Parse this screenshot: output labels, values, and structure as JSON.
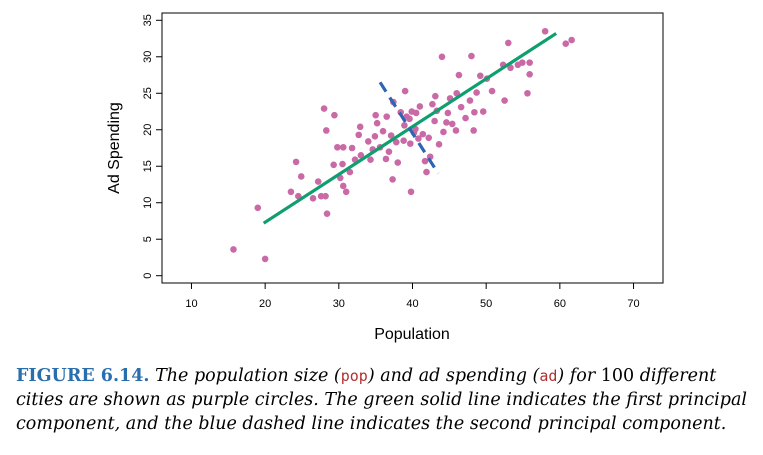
{
  "chart_data": {
    "type": "scatter",
    "xlabel": "Population",
    "ylabel": "Ad Spending",
    "xlim": [
      6,
      74
    ],
    "ylim": [
      -1,
      36
    ],
    "xticks": [
      10,
      20,
      30,
      40,
      50,
      60,
      70
    ],
    "yticks": [
      0,
      5,
      10,
      15,
      20,
      25,
      30,
      35
    ],
    "grid": false,
    "points": [
      [
        15.7,
        3.6
      ],
      [
        19.0,
        9.3
      ],
      [
        20.0,
        2.3
      ],
      [
        23.5,
        11.5
      ],
      [
        24.2,
        15.6
      ],
      [
        24.9,
        13.6
      ],
      [
        24.5,
        10.9
      ],
      [
        26.5,
        10.6
      ],
      [
        27.2,
        12.9
      ],
      [
        27.6,
        10.9
      ],
      [
        28.2,
        10.9
      ],
      [
        28.4,
        8.5
      ],
      [
        28.0,
        22.9
      ],
      [
        28.3,
        19.9
      ],
      [
        29.3,
        15.2
      ],
      [
        29.4,
        22.0
      ],
      [
        29.8,
        17.6
      ],
      [
        30.2,
        13.4
      ],
      [
        30.6,
        17.6
      ],
      [
        30.6,
        12.3
      ],
      [
        31.0,
        11.5
      ],
      [
        30.5,
        15.3
      ],
      [
        31.8,
        17.5
      ],
      [
        32.2,
        15.9
      ],
      [
        32.7,
        19.3
      ],
      [
        32.9,
        20.4
      ],
      [
        33.0,
        16.5
      ],
      [
        34.0,
        18.4
      ],
      [
        34.3,
        15.9
      ],
      [
        34.6,
        17.3
      ],
      [
        35.2,
        20.9
      ],
      [
        35.6,
        17.6
      ],
      [
        35.0,
        22.0
      ],
      [
        36.0,
        19.8
      ],
      [
        36.4,
        16.0
      ],
      [
        36.5,
        21.8
      ],
      [
        37.1,
        19.2
      ],
      [
        37.3,
        13.2
      ],
      [
        37.8,
        18.3
      ],
      [
        38.0,
        15.5
      ],
      [
        38.4,
        22.4
      ],
      [
        38.8,
        18.5
      ],
      [
        39.0,
        25.3
      ],
      [
        39.2,
        21.8
      ],
      [
        39.6,
        21.5
      ],
      [
        39.7,
        18.1
      ],
      [
        39.9,
        22.5
      ],
      [
        39.8,
        11.5
      ],
      [
        40.2,
        19.6
      ],
      [
        40.5,
        22.3
      ],
      [
        40.8,
        18.8
      ],
      [
        41.0,
        23.2
      ],
      [
        41.4,
        19.4
      ],
      [
        41.7,
        15.7
      ],
      [
        41.9,
        14.2
      ],
      [
        42.2,
        18.9
      ],
      [
        42.4,
        16.3
      ],
      [
        42.7,
        23.5
      ],
      [
        43.1,
        24.6
      ],
      [
        43.3,
        22.6
      ],
      [
        43.6,
        18.0
      ],
      [
        44.0,
        30.0
      ],
      [
        44.2,
        19.7
      ],
      [
        44.6,
        21.0
      ],
      [
        44.8,
        22.3
      ],
      [
        45.1,
        24.3
      ],
      [
        45.4,
        20.8
      ],
      [
        45.9,
        19.9
      ],
      [
        46.3,
        27.5
      ],
      [
        46.6,
        23.1
      ],
      [
        47.2,
        21.6
      ],
      [
        47.8,
        24.0
      ],
      [
        48.3,
        19.9
      ],
      [
        48.0,
        30.1
      ],
      [
        48.4,
        22.4
      ],
      [
        48.7,
        25.1
      ],
      [
        49.2,
        27.4
      ],
      [
        49.6,
        22.5
      ],
      [
        50.8,
        25.3
      ],
      [
        52.3,
        28.9
      ],
      [
        52.5,
        24.0
      ],
      [
        53.0,
        31.9
      ],
      [
        53.3,
        28.5
      ],
      [
        54.3,
        28.9
      ],
      [
        54.9,
        29.2
      ],
      [
        55.6,
        25.0
      ],
      [
        55.9,
        27.6
      ],
      [
        55.9,
        29.2
      ],
      [
        58.0,
        33.5
      ],
      [
        60.8,
        31.8
      ],
      [
        61.6,
        32.3
      ],
      [
        37.4,
        23.8
      ],
      [
        34.9,
        19.1
      ],
      [
        43.0,
        21.2
      ],
      [
        40.4,
        20.1
      ],
      [
        36.8,
        17.0
      ],
      [
        46.0,
        25.0
      ],
      [
        31.5,
        14.2
      ],
      [
        50.1,
        27.0
      ],
      [
        38.9,
        20.6
      ]
    ],
    "lines": [
      {
        "style": "solid",
        "color": "#0e9f6e",
        "x": [
          19.8,
          59.5
        ],
        "y": [
          7.2,
          33.2
        ]
      },
      {
        "style": "dashed",
        "color": "#2f64b3",
        "x": [
          35.6,
          43.5
        ],
        "y": [
          26.5,
          14.0
        ]
      }
    ],
    "point_color": "#c96aa6"
  },
  "caption": {
    "label": "FIGURE 6.14.",
    "t1": " The population size (",
    "code1": "pop",
    "t2": ") and ad spending (",
    "code2": "ad",
    "t3": ") for ",
    "num": "100",
    "t4": " different cities are shown as purple circles. The green solid line indicates the first principal component, and the blue dashed line indicates the second principal component."
  }
}
